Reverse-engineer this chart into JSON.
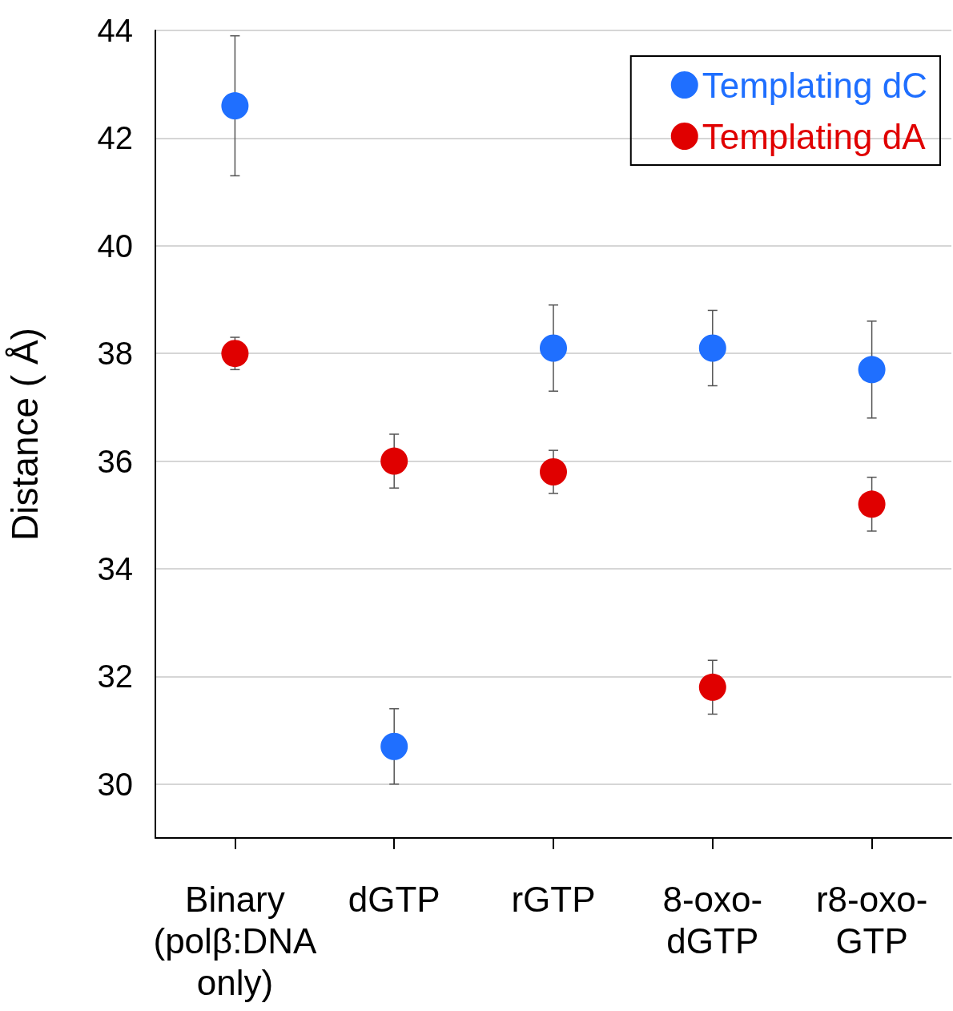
{
  "chart_data": {
    "type": "scatter",
    "ylabel": "Distance ( Å)",
    "categories": [
      "Binary\n(polβ:DNA\nonly)",
      "dGTP",
      "rGTP",
      "8-oxo-\ndGTP",
      "r8-oxo-\nGTP"
    ],
    "series": [
      {
        "name": "Templating dC",
        "color": "#1f6fff",
        "values": [
          42.6,
          30.7,
          38.1,
          38.1,
          37.7
        ],
        "errors": [
          1.3,
          0.7,
          0.8,
          0.7,
          0.9
        ]
      },
      {
        "name": "Templating dA",
        "color": "#e00000",
        "values": [
          38.0,
          36.0,
          35.8,
          31.8,
          35.2
        ],
        "errors": [
          0.3,
          0.5,
          0.4,
          0.5,
          0.5
        ]
      }
    ],
    "ylim": [
      29,
      44
    ],
    "yticks": [
      30,
      32,
      34,
      36,
      38,
      40,
      42,
      44
    ],
    "grid": "y",
    "legend": "top right",
    "marker": "circle"
  }
}
